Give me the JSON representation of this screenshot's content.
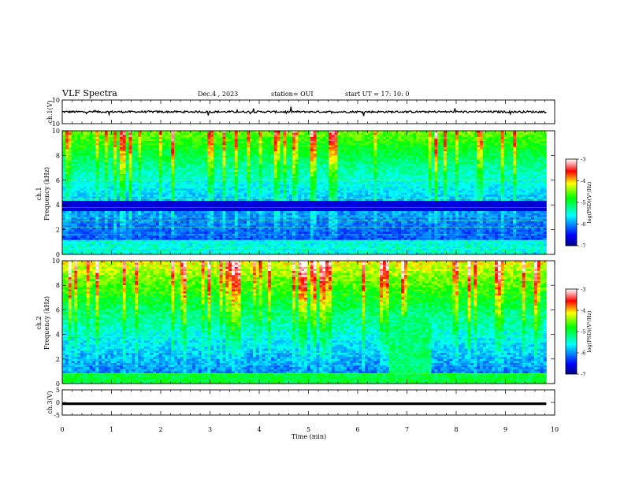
{
  "header": {
    "title": "VLF Spectra",
    "date": "Dec.4 , 2023",
    "station": "station= OUI",
    "start": "start UT = 17: 10: 0"
  },
  "colors": {
    "spec_low": "#00007f",
    "spec_high": "#ff0000",
    "waveform": "#000000"
  },
  "chart_data": [
    {
      "type": "line",
      "panel": "ch1-waveform",
      "ylabel": "ch.1(V)",
      "ylim": [
        -10,
        10
      ],
      "y_ticks": [
        "10",
        "-10"
      ],
      "xlim": [
        0,
        10
      ],
      "baseline": 0,
      "description_series": [
        {
          "name": "",
          "values_range": [
            -1.5,
            1.5
          ]
        }
      ]
    },
    {
      "type": "heatmap",
      "panel": "ch1-spectrogram",
      "ylabel_top": "ch.1",
      "ylabel": "Frequency (kHz)",
      "ylim": [
        0,
        10
      ],
      "y_ticks": [
        "0",
        "2",
        "4",
        "6",
        "8",
        "10"
      ],
      "xlim": [
        0,
        10
      ],
      "colorbar": {
        "label": "log(PSD)(V²/Hz)",
        "range": [
          -7,
          -3
        ],
        "ticks": [
          "-3",
          "-4",
          "-5",
          "-6",
          "-7"
        ]
      }
    },
    {
      "type": "heatmap",
      "panel": "ch2-spectrogram",
      "ylabel_top": "ch.2",
      "ylabel": "Frequency (kHz)",
      "ylim": [
        0,
        10
      ],
      "y_ticks": [
        "0",
        "2",
        "4",
        "6",
        "8",
        "10"
      ],
      "xlim": [
        0,
        10
      ],
      "colorbar": {
        "label": "log(PSD)(V²/Hz)",
        "range": [
          -7,
          -3
        ],
        "ticks": [
          "-3",
          "-4",
          "-5",
          "-6",
          "-7"
        ]
      }
    },
    {
      "type": "line",
      "panel": "ch3-waveform",
      "ylabel": "ch.3(V)",
      "ylim": [
        -5,
        5
      ],
      "y_ticks": [
        "5",
        "0",
        "-5"
      ],
      "xlim": [
        0,
        10
      ],
      "baseline": -0.5
    }
  ],
  "x_axis": {
    "label": "Time (min)",
    "ticks": [
      "0",
      "1",
      "2",
      "3",
      "4",
      "5",
      "6",
      "7",
      "8",
      "9",
      "10"
    ]
  }
}
